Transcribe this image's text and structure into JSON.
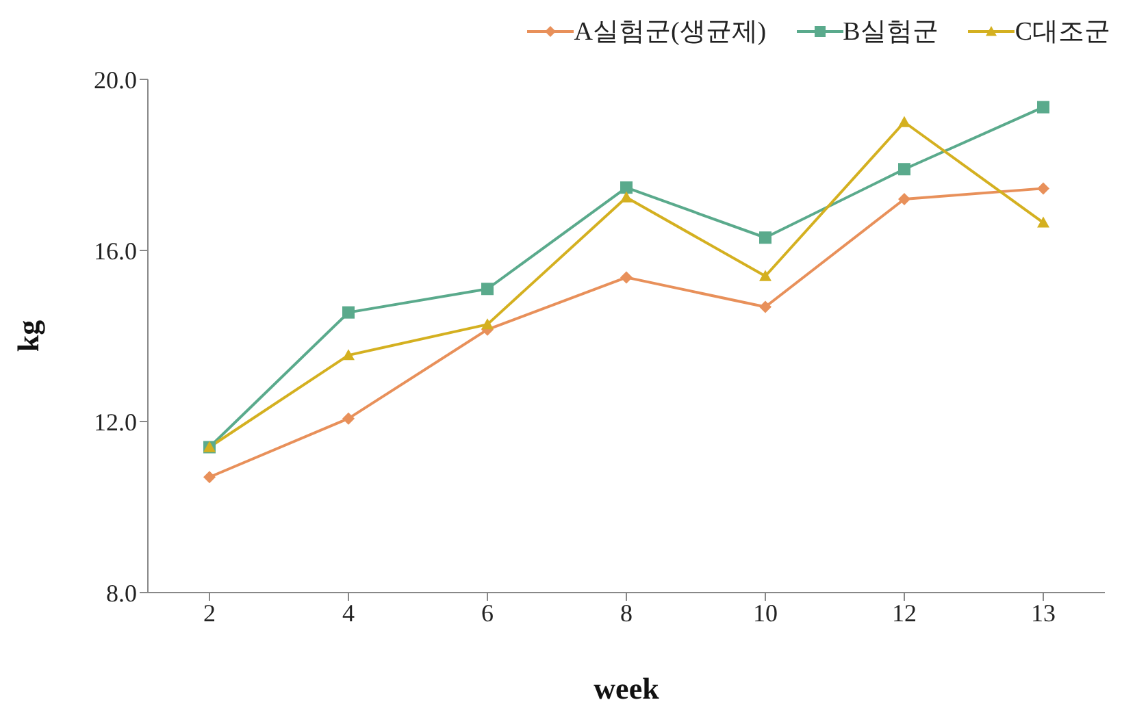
{
  "chart_data": {
    "type": "line",
    "xlabel": "week",
    "ylabel": "kg",
    "categories": [
      "2",
      "4",
      "6",
      "8",
      "10",
      "12",
      "13"
    ],
    "series": [
      {
        "name": "A실험군(생균제)",
        "color": "#e8905a",
        "marker": "diamond",
        "values": [
          10.7,
          12.07,
          14.15,
          15.37,
          14.68,
          17.2,
          17.45
        ]
      },
      {
        "name": "B실험군",
        "color": "#5aaa8c",
        "marker": "square",
        "values": [
          11.4,
          14.55,
          15.1,
          17.47,
          16.3,
          17.9,
          19.35
        ]
      },
      {
        "name": "C대조군",
        "color": "#d4b020",
        "marker": "triangle",
        "values": [
          11.4,
          13.55,
          14.27,
          17.24,
          15.4,
          19.0,
          16.65
        ]
      }
    ],
    "ylim": [
      8,
      20
    ],
    "yticks": [
      {
        "value": 8,
        "label": "8.0"
      },
      {
        "value": 12,
        "label": "12.0"
      },
      {
        "value": 16,
        "label": "16.0"
      },
      {
        "value": 20,
        "label": "20.0"
      }
    ],
    "grid": false,
    "legend": "top right",
    "line_style": "solid"
  }
}
